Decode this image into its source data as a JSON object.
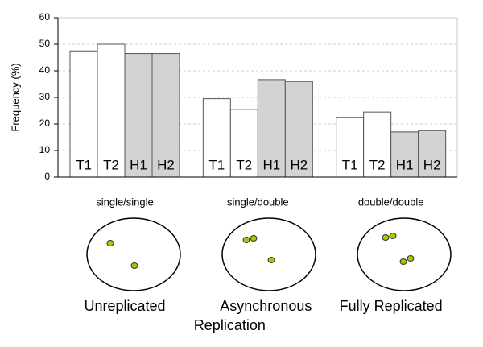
{
  "chart_data": {
    "type": "bar",
    "y_label": "Frequency  (%)",
    "categories": [
      "single/single",
      "single/double",
      "double/double"
    ],
    "series": [
      {
        "name": "T1",
        "color": "#ffffff",
        "values": [
          47.5,
          29.5,
          22.5
        ]
      },
      {
        "name": "T2",
        "color": "#ffffff",
        "values": [
          50,
          25.5,
          24.5
        ]
      },
      {
        "name": "H1",
        "color": "#d3d3d3",
        "values": [
          46.5,
          36.7,
          17
        ]
      },
      {
        "name": "H2",
        "color": "#d3d3d3",
        "values": [
          46.5,
          36,
          17.5
        ]
      }
    ],
    "ylim": [
      0,
      60
    ],
    "yticks": [
      0,
      10,
      20,
      30,
      40,
      50,
      60
    ],
    "grid": true,
    "captions": [
      [
        "Unreplicated"
      ],
      [
        "Asynchronous",
        "Replication"
      ],
      [
        "Fully Replicated"
      ]
    ]
  }
}
